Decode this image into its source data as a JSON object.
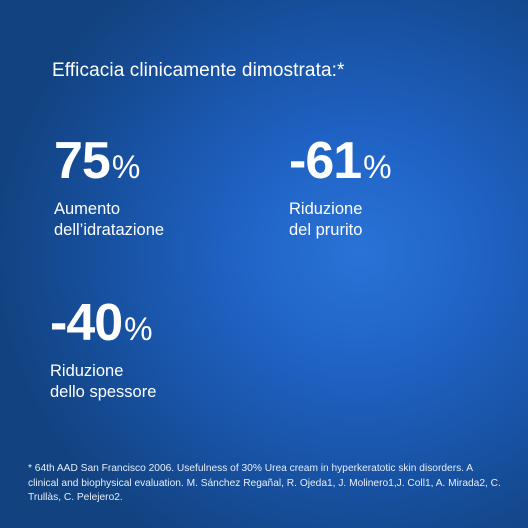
{
  "headline": "Efficacia clinicamente dimostrata:*",
  "stats": [
    {
      "value": "75",
      "unit": "%",
      "line1": "Aumento",
      "line2": "dell’idratazione"
    },
    {
      "value": "-61",
      "unit": "%",
      "line1": "Riduzione",
      "line2": "del prurito"
    },
    {
      "value": "-40",
      "unit": "%",
      "line1": "Riduzione",
      "line2": "dello spessore"
    }
  ],
  "footnote": "* 64th AAD San Francisco 2006. Usefulness of 30% Urea cream in hyperkeratotic skin disorders. A clinical and biophysical evaluation. M. Sánchez Regañal, R. Ojeda1, J. Molinero1,J. Coll1, A. Mirada2, C. Trullàs, C. Pelejero2.",
  "colors": {
    "background": "#1f62c4",
    "text": "#ffffff"
  }
}
